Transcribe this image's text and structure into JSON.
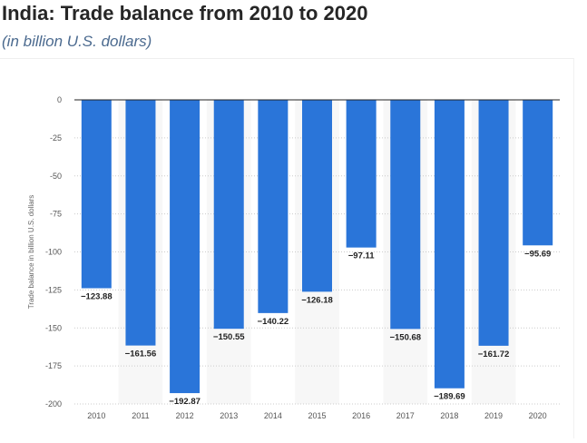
{
  "header": {
    "title": "India: Trade balance from 2010 to 2020",
    "subtitle": "(in billion U.S. dollars)"
  },
  "colors": {
    "bar": "#2a75d9",
    "label": "#222222",
    "tick": "#555555",
    "grid": "#cccccc",
    "band": "#f7f7f7"
  },
  "chart_data": {
    "type": "bar",
    "categories": [
      "2010",
      "2011",
      "2012",
      "2013",
      "2014",
      "2015",
      "2016",
      "2017",
      "2018",
      "2019",
      "2020"
    ],
    "values": [
      -123.88,
      -161.56,
      -192.87,
      -150.55,
      -140.22,
      -126.18,
      -97.11,
      -150.68,
      -189.69,
      -161.72,
      -95.69
    ],
    "value_labels": [
      "−123.88",
      "−161.56",
      "−192.87",
      "−150.55",
      "−140.22",
      "−126.18",
      "−97.11",
      "−150.68",
      "−189.69",
      "−161.72",
      "−95.69"
    ],
    "ylabel": "Trade balance in billion U.S. dollars",
    "ylim": [
      -200,
      0
    ],
    "yticks": [
      0,
      -25,
      -50,
      -75,
      -100,
      -125,
      -150,
      -175,
      -200
    ],
    "ytick_labels": [
      "0",
      "-25",
      "-50",
      "-75",
      "-100",
      "-125",
      "-150",
      "-175",
      "-200"
    ],
    "grid": true,
    "alternating_column_bands": true
  }
}
